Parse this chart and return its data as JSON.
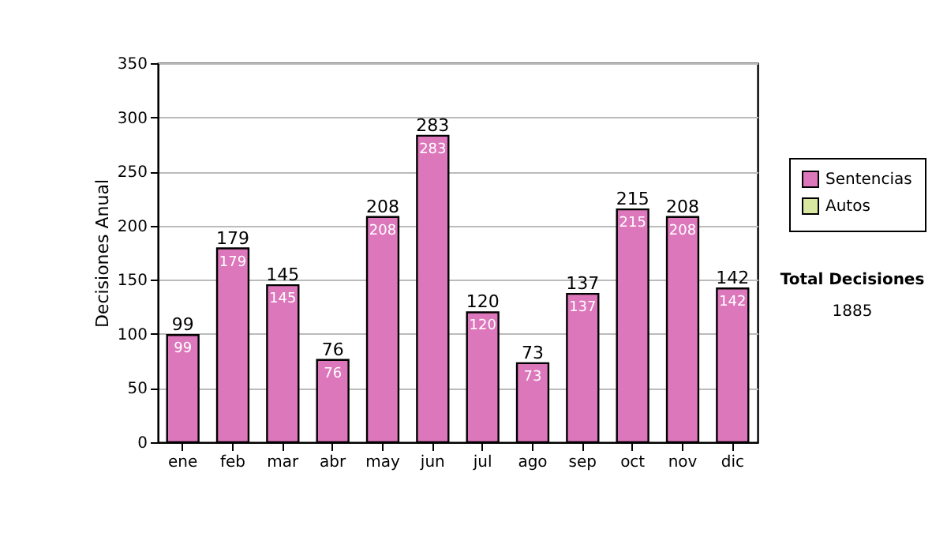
{
  "chart_data": {
    "type": "bar",
    "ylabel": "Decisiones Anual",
    "categories": [
      "ene",
      "feb",
      "mar",
      "abr",
      "may",
      "jun",
      "jul",
      "ago",
      "sep",
      "oct",
      "nov",
      "dic"
    ],
    "series": [
      {
        "name": "Sentencias",
        "color": "#dd77bb",
        "values": [
          99,
          179,
          145,
          76,
          208,
          283,
          120,
          73,
          137,
          215,
          208,
          142
        ]
      },
      {
        "name": "Autos",
        "color": "#d8e8a0",
        "values": [
          null,
          null,
          null,
          null,
          null,
          null,
          null,
          null,
          null,
          null,
          null,
          null
        ]
      }
    ],
    "data_labels": true,
    "totals": [
      "99",
      "179",
      "145",
      "76",
      "208",
      "283",
      "120",
      "73",
      "137",
      "215",
      "208",
      "142"
    ],
    "ylim": [
      0,
      350
    ],
    "yticks": [
      0,
      50,
      100,
      150,
      200,
      250,
      300,
      350
    ],
    "grid": "y",
    "legend": "right",
    "annotations": [
      "Total Decisiones",
      "1885"
    ]
  }
}
